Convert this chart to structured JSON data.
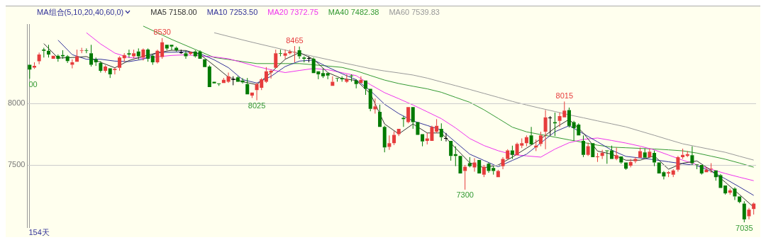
{
  "chart_data": [
    {
      "type": "candlestick",
      "grid": "y",
      "tick_labels": "y",
      "ylim": [
        6995,
        8640
      ],
      "yticks": [
        7500,
        8000
      ],
      "categories": [
        null,
        null,
        null,
        null,
        null,
        null,
        null,
        null,
        null,
        null,
        null,
        null,
        null,
        null,
        null,
        null,
        null,
        null,
        null,
        null,
        null,
        null,
        null,
        null,
        null,
        null,
        null,
        null,
        null,
        null,
        null,
        null,
        null,
        null,
        null,
        null,
        null,
        null,
        null,
        null,
        null,
        null,
        null,
        null,
        null,
        null,
        null,
        null,
        null,
        null,
        null,
        null,
        null,
        null,
        null,
        null,
        null,
        null,
        null,
        null,
        null,
        null,
        null,
        null,
        null,
        null,
        null,
        null,
        null,
        null,
        null,
        null,
        null,
        null,
        null,
        null,
        null,
        null,
        null,
        null,
        null,
        null,
        null,
        null,
        null,
        null,
        null,
        null,
        null,
        null,
        null,
        null,
        null,
        null,
        null,
        null,
        null,
        null,
        null,
        null,
        null,
        null,
        null,
        null,
        null,
        null,
        null,
        null,
        null,
        null,
        null,
        null,
        null,
        null,
        null,
        null,
        null,
        null,
        null,
        null,
        null,
        null,
        null,
        null,
        null,
        null,
        null,
        null,
        null,
        null,
        null,
        null,
        null,
        null,
        null,
        null,
        null,
        null,
        null,
        null,
        null,
        null,
        null,
        null,
        null,
        null,
        null,
        null,
        null,
        null,
        null,
        null,
        null,
        null
      ],
      "ohlc": [
        [
          8313,
          8313,
          8200,
          8275
        ],
        [
          8290,
          8333,
          8280,
          8305
        ],
        [
          8342,
          8412,
          8318,
          8397
        ],
        [
          8436,
          8451,
          8372,
          8426
        ],
        [
          8426,
          8475,
          8372,
          8397
        ],
        [
          8362,
          8387,
          8362,
          8387
        ],
        [
          8387,
          8397,
          8338,
          8362
        ],
        [
          8392,
          8431,
          8362,
          8382
        ],
        [
          8382,
          8392,
          8328,
          8343
        ],
        [
          8313,
          8357,
          8284,
          8333
        ],
        [
          8338,
          8436,
          8338,
          8382
        ],
        [
          8426,
          8451,
          8407,
          8431
        ],
        [
          8431,
          8446,
          8407,
          8426
        ],
        [
          8407,
          8475,
          8299,
          8313
        ],
        [
          8357,
          8372,
          8304,
          8333
        ],
        [
          8328,
          8343,
          8250,
          8265
        ],
        [
          8265,
          8309,
          8250,
          8299
        ],
        [
          8284,
          8284,
          8206,
          8235
        ],
        [
          8270,
          8290,
          8235,
          8280
        ],
        [
          8289,
          8382,
          8265,
          8372
        ],
        [
          8367,
          8407,
          8338,
          8392
        ],
        [
          8407,
          8436,
          8372,
          8397
        ],
        [
          8382,
          8436,
          8367,
          8407
        ],
        [
          8421,
          8446,
          8357,
          8382
        ],
        [
          8372,
          8446,
          8348,
          8436
        ],
        [
          8436,
          8446,
          8338,
          8362
        ],
        [
          8387,
          8397,
          8313,
          8333
        ],
        [
          8333,
          8436,
          8323,
          8426
        ],
        [
          8377,
          8530,
          8362,
          8495
        ],
        [
          8475,
          8475,
          8431,
          8446
        ],
        [
          8475,
          8475,
          8431,
          8461
        ],
        [
          8451,
          8461,
          8421,
          8431
        ],
        [
          8412,
          8436,
          8402,
          8412
        ],
        [
          8407,
          8426,
          8362,
          8382
        ],
        [
          8402,
          8417,
          8392,
          8417
        ],
        [
          8421,
          8431,
          8372,
          8382
        ],
        [
          8421,
          8431,
          8362,
          8362
        ],
        [
          8357,
          8357,
          8294,
          8294
        ],
        [
          8299,
          8309,
          8132,
          8132
        ],
        [
          8176,
          8176,
          8162,
          8162
        ],
        [
          8162,
          8162,
          8142,
          8157
        ],
        [
          8166,
          8206,
          8166,
          8191
        ],
        [
          8176,
          8250,
          8166,
          8220
        ],
        [
          8191,
          8220,
          8147,
          8191
        ],
        [
          8211,
          8221,
          8176,
          8176
        ],
        [
          8186,
          8206,
          8161,
          8171
        ],
        [
          8157,
          8206,
          8074,
          8074
        ],
        [
          8064,
          8088,
          8044,
          8088
        ],
        [
          8108,
          8167,
          8025,
          8157
        ],
        [
          8127,
          8206,
          8108,
          8196
        ],
        [
          8176,
          8294,
          8166,
          8260
        ],
        [
          8250,
          8275,
          8201,
          8265
        ],
        [
          8289,
          8436,
          8289,
          8407
        ],
        [
          8407,
          8436,
          8382,
          8402
        ],
        [
          8387,
          8436,
          8362,
          8407
        ],
        [
          8407,
          8436,
          8397,
          8421
        ],
        [
          8412,
          8465,
          8333,
          8417
        ],
        [
          8431,
          8461,
          8362,
          8382
        ],
        [
          8372,
          8382,
          8333,
          8362
        ],
        [
          8367,
          8382,
          8333,
          8367
        ],
        [
          8362,
          8372,
          8245,
          8245
        ],
        [
          8260,
          8260,
          8196,
          8235
        ],
        [
          8245,
          8284,
          8206,
          8220
        ],
        [
          8245,
          8245,
          8196,
          8225
        ],
        [
          8142,
          8220,
          8142,
          8176
        ],
        [
          8206,
          8206,
          8176,
          8201
        ],
        [
          8206,
          8220,
          8176,
          8196
        ],
        [
          8176,
          8235,
          8166,
          8196
        ],
        [
          8225,
          8235,
          8176,
          8220
        ],
        [
          8186,
          8196,
          8122,
          8157
        ],
        [
          8166,
          8220,
          8166,
          8191
        ],
        [
          8186,
          8186,
          8069,
          8118
        ],
        [
          8118,
          8118,
          7936,
          7956
        ],
        [
          7951,
          8039,
          7917,
          7976
        ],
        [
          7931,
          7990,
          7809,
          7809
        ],
        [
          7809,
          7819,
          7603,
          7642
        ],
        [
          7647,
          7740,
          7623,
          7677
        ],
        [
          7677,
          7774,
          7662,
          7745
        ],
        [
          7750,
          7794,
          7735,
          7794
        ],
        [
          7882,
          7897,
          7809,
          7872
        ],
        [
          7848,
          7970,
          7838,
          7970
        ],
        [
          7970,
          7970,
          7794,
          7848
        ],
        [
          7848,
          7848,
          7745,
          7745
        ],
        [
          7750,
          7750,
          7652,
          7691
        ],
        [
          7696,
          7760,
          7667,
          7716
        ],
        [
          7696,
          7819,
          7696,
          7809
        ],
        [
          7770,
          7872,
          7760,
          7818
        ],
        [
          7794,
          7838,
          7696,
          7726
        ],
        [
          7716,
          7760,
          7691,
          7716
        ],
        [
          7696,
          7696,
          7535,
          7574
        ],
        [
          7588,
          7652,
          7491,
          7574
        ],
        [
          7574,
          7574,
          7432,
          7432
        ],
        [
          7451,
          7500,
          7300,
          7486
        ],
        [
          7515,
          7564,
          7481,
          7491
        ],
        [
          7481,
          7555,
          7446,
          7520
        ],
        [
          7540,
          7540,
          7432,
          7432
        ],
        [
          7422,
          7500,
          7402,
          7486
        ],
        [
          7510,
          7520,
          7437,
          7451
        ],
        [
          7476,
          7491,
          7422,
          7451
        ],
        [
          7402,
          7461,
          7402,
          7451
        ],
        [
          7491,
          7564,
          7466,
          7549
        ],
        [
          7549,
          7628,
          7549,
          7618
        ],
        [
          7618,
          7657,
          7549,
          7583
        ],
        [
          7579,
          7682,
          7579,
          7672
        ],
        [
          7657,
          7716,
          7637,
          7677
        ],
        [
          7677,
          7740,
          7652,
          7726
        ],
        [
          7740,
          7809,
          7667,
          7667
        ],
        [
          7642,
          7706,
          7613,
          7657
        ],
        [
          7672,
          7770,
          7652,
          7740
        ],
        [
          7770,
          7946,
          7628,
          7887
        ],
        [
          7882,
          7897,
          7740,
          7882
        ],
        [
          7848,
          7926,
          7735,
          7838
        ],
        [
          7858,
          7926,
          7809,
          7897
        ],
        [
          7887,
          8015,
          7887,
          7941
        ],
        [
          7946,
          7966,
          7804,
          7818
        ],
        [
          7848,
          7858,
          7696,
          7799
        ],
        [
          7828,
          7838,
          7740,
          7740
        ],
        [
          7696,
          7740,
          7564,
          7583
        ],
        [
          7583,
          7681,
          7573,
          7652
        ],
        [
          7677,
          7677,
          7564,
          7564
        ],
        [
          7564,
          7598,
          7525,
          7569
        ],
        [
          7574,
          7623,
          7549,
          7598
        ],
        [
          7618,
          7618,
          7510,
          7613
        ],
        [
          7618,
          7657,
          7549,
          7549
        ],
        [
          7549,
          7642,
          7539,
          7579
        ],
        [
          7569,
          7569,
          7510,
          7520
        ],
        [
          7520,
          7520,
          7461,
          7471
        ],
        [
          7495,
          7549,
          7481,
          7525
        ],
        [
          7530,
          7564,
          7515,
          7549
        ],
        [
          7559,
          7642,
          7559,
          7613
        ],
        [
          7603,
          7633,
          7559,
          7559
        ],
        [
          7564,
          7633,
          7564,
          7608
        ],
        [
          7598,
          7618,
          7491,
          7520
        ],
        [
          7520,
          7520,
          7432,
          7432
        ],
        [
          7441,
          7451,
          7383,
          7407
        ],
        [
          7432,
          7451,
          7402,
          7441
        ],
        [
          7422,
          7466,
          7402,
          7456
        ],
        [
          7461,
          7574,
          7446,
          7564
        ],
        [
          7564,
          7633,
          7549,
          7583
        ],
        [
          7574,
          7613,
          7564,
          7588
        ],
        [
          7579,
          7652,
          7500,
          7515
        ],
        [
          7505,
          7505,
          7466,
          7500
        ],
        [
          7500,
          7500,
          7422,
          7432
        ],
        [
          7441,
          7481,
          7441,
          7461
        ],
        [
          7466,
          7515,
          7437,
          7471
        ],
        [
          7456,
          7456,
          7373,
          7402
        ],
        [
          7417,
          7427,
          7314,
          7314
        ],
        [
          7334,
          7334,
          7260,
          7270
        ],
        [
          7275,
          7309,
          7260,
          7294
        ],
        [
          7309,
          7319,
          7216,
          7245
        ],
        [
          7245,
          7245,
          7190,
          7200
        ],
        [
          7187,
          7206,
          7035,
          7059
        ],
        [
          7084,
          7152,
          7059,
          7138
        ],
        [
          7143,
          7196,
          7098,
          7187
        ]
      ],
      "colors": [
        "#007a00",
        "#e63c3c",
        "#e63c3c",
        "#007a00",
        "#007a00",
        "#e63c3c",
        "#007a00",
        "#007a00",
        "#007a00",
        "#e63c3c",
        "#e63c3c",
        "#e63c3c",
        "#007a00",
        "#007a00",
        "#007a00",
        "#007a00",
        "#e63c3c",
        "#007a00",
        "#e63c3c",
        "#e63c3c",
        "#e63c3c",
        "#007a00",
        "#e63c3c",
        "#007a00",
        "#e63c3c",
        "#007a00",
        "#007a00",
        "#e63c3c",
        "#e63c3c",
        "#007a00",
        "#007a00",
        "#007a00",
        "#000000",
        "#007a00",
        "#e63c3c",
        "#007a00",
        "#007a00",
        "#007a00",
        "#007a00",
        "#007a00",
        "#007a00",
        "#e63c3c",
        "#e63c3c",
        "#000000",
        "#007a00",
        "#007a00",
        "#007a00",
        "#e63c3c",
        "#e63c3c",
        "#e63c3c",
        "#e63c3c",
        "#e63c3c",
        "#e63c3c",
        "#007a00",
        "#e63c3c",
        "#e63c3c",
        "#e63c3c",
        "#007a00",
        "#007a00",
        "#000000",
        "#007a00",
        "#007a00",
        "#007a00",
        "#007a00",
        "#e63c3c",
        "#007a00",
        "#007a00",
        "#e63c3c",
        "#007a00",
        "#007a00",
        "#e63c3c",
        "#007a00",
        "#007a00",
        "#e63c3c",
        "#007a00",
        "#007a00",
        "#e63c3c",
        "#e63c3c",
        "#e63c3c",
        "#007a00",
        "#e63c3c",
        "#007a00",
        "#007a00",
        "#007a00",
        "#e63c3c",
        "#e63c3c",
        "#e63c3c",
        "#007a00",
        "#000000",
        "#007a00",
        "#007a00",
        "#007a00",
        "#e63c3c",
        "#007a00",
        "#e63c3c",
        "#007a00",
        "#e63c3c",
        "#007a00",
        "#007a00",
        "#e63c3c",
        "#e63c3c",
        "#e63c3c",
        "#007a00",
        "#e63c3c",
        "#e63c3c",
        "#e63c3c",
        "#007a00",
        "#e63c3c",
        "#e63c3c",
        "#e63c3c",
        "#000000",
        "#007a00",
        "#e63c3c",
        "#e63c3c",
        "#007a00",
        "#007a00",
        "#007a00",
        "#007a00",
        "#e63c3c",
        "#007a00",
        "#e63c3c",
        "#e63c3c",
        "#007a00",
        "#007a00",
        "#e63c3c",
        "#007a00",
        "#007a00",
        "#e63c3c",
        "#e63c3c",
        "#e63c3c",
        "#007a00",
        "#e63c3c",
        "#007a00",
        "#007a00",
        "#007a00",
        "#e63c3c",
        "#e63c3c",
        "#e63c3c",
        "#e63c3c",
        "#e63c3c",
        "#007a00",
        "#007a00",
        "#007a00",
        "#e63c3c",
        "#e63c3c",
        "#007a00",
        "#007a00",
        "#007a00",
        "#e63c3c",
        "#007a00",
        "#007a00",
        "#007a00",
        "#e63c3c",
        "#e63c3c"
      ],
      "annotations": [
        {
          "text": "8530",
          "y": 8530
        },
        {
          "text": "8465",
          "y": 8465
        },
        {
          "text": "8025",
          "y": 8025
        },
        {
          "text": "8015",
          "y": 8015
        },
        {
          "text": "7300",
          "y": 7300
        },
        {
          "text": "7035",
          "y": 7035
        },
        {
          "text": "00",
          "y": 8200
        },
        "154天"
      ]
    },
    {
      "type": "line",
      "legend": "top left",
      "legend_title": "MA组合(5,10,20,40,60,0)",
      "marker": "none",
      "tick_labels": false,
      "ylim": [
        6995,
        8640
      ],
      "categories": [
        null,
        null,
        null,
        null,
        null,
        null,
        null,
        null,
        null,
        null,
        null,
        null,
        null,
        null,
        null,
        null,
        null,
        null,
        null,
        null,
        null,
        null,
        null,
        null,
        null,
        null,
        null,
        null,
        null,
        null,
        null,
        null,
        null,
        null,
        null,
        null,
        null,
        null,
        null,
        null,
        null,
        null,
        null,
        null,
        null,
        null,
        null,
        null,
        null,
        null,
        null,
        null
      ],
      "series": [
        {
          "name": "MA5 7158.00",
          "color": "#333333",
          "values": [
            null,
            8485,
            8368,
            8372,
            8380,
            8333,
            8289,
            8348,
            8382,
            8411,
            8431,
            8429,
            8397,
            8307,
            8213,
            8176,
            8152,
            8250,
            8358,
            8412,
            8358,
            8250,
            8201,
            8186,
            8079,
            7833,
            7752,
            7833,
            7760,
            7760,
            7637,
            7518,
            7478,
            7500,
            7564,
            7637,
            7711,
            7801,
            7870,
            7760,
            7613,
            7588,
            7539,
            7539,
            7574,
            7466,
            7515,
            7533,
            7457,
            7360,
            7260,
            7158
          ]
        },
        {
          "name": "MA10 7253.50",
          "color": "#333399",
          "values": [
            null,
            null,
            8513,
            8395,
            8358,
            8358,
            8343,
            8339,
            8358,
            8412,
            8415,
            8419,
            8404,
            8353,
            8290,
            8193,
            8165,
            8219,
            8299,
            8343,
            8352,
            8294,
            8241,
            8192,
            8103,
            7993,
            7917,
            7858,
            7821,
            7784,
            7686,
            7588,
            7537,
            7486,
            7537,
            7588,
            7679,
            7770,
            7819,
            7754,
            7688,
            7620,
            7570,
            7557,
            7543,
            7526,
            7510,
            7495,
            7449,
            7388,
            7322,
            7253.5
          ]
        },
        {
          "name": "MA20 7372.75",
          "color": "#ee33ee",
          "values": [
            null,
            null,
            null,
            null,
            8573,
            8482,
            8408,
            8371,
            8366,
            8378,
            8389,
            8394,
            8386,
            8377,
            8362,
            8331,
            8299,
            8273,
            8250,
            8267,
            8283,
            8273,
            8249,
            8225,
            8152,
            8087,
            8038,
            7987,
            7932,
            7876,
            7801,
            7715,
            7658,
            7616,
            7585,
            7574,
            7564,
            7629,
            7681,
            7708,
            7719,
            7699,
            7678,
            7653,
            7623,
            7581,
            7539,
            7502,
            7465,
            7431,
            7401,
            7372.75
          ]
        },
        {
          "name": "MA40 7482.38",
          "color": "#339933",
          "values": [
            null,
            null,
            null,
            null,
            null,
            null,
            null,
            null,
            8627,
            8573,
            8519,
            8470,
            8421,
            8372,
            8356,
            8339,
            8323,
            8323,
            8323,
            8323,
            8313,
            8303,
            8292,
            8264,
            8226,
            8189,
            8161,
            8139,
            8118,
            8090,
            8049,
            8009,
            7948,
            7878,
            7807,
            7769,
            7747,
            7726,
            7704,
            7683,
            7661,
            7645,
            7640,
            7635,
            7630,
            7623,
            7615,
            7597,
            7572,
            7547,
            7516,
            7482.38
          ]
        },
        {
          "name": "MA60 7539.83",
          "color": "#999999",
          "values": [
            null,
            null,
            null,
            null,
            null,
            null,
            null,
            null,
            null,
            null,
            null,
            null,
            null,
            8573,
            8544,
            8515,
            8487,
            8460,
            8433,
            8406,
            8381,
            8356,
            8331,
            8307,
            8282,
            8263,
            8247,
            8230,
            8205,
            8174,
            8144,
            8113,
            8081,
            8049,
            8016,
            7987,
            7960,
            7934,
            7907,
            7883,
            7858,
            7834,
            7809,
            7775,
            7741,
            7706,
            7672,
            7649,
            7626,
            7603,
            7571,
            7539.83
          ]
        }
      ]
    }
  ]
}
